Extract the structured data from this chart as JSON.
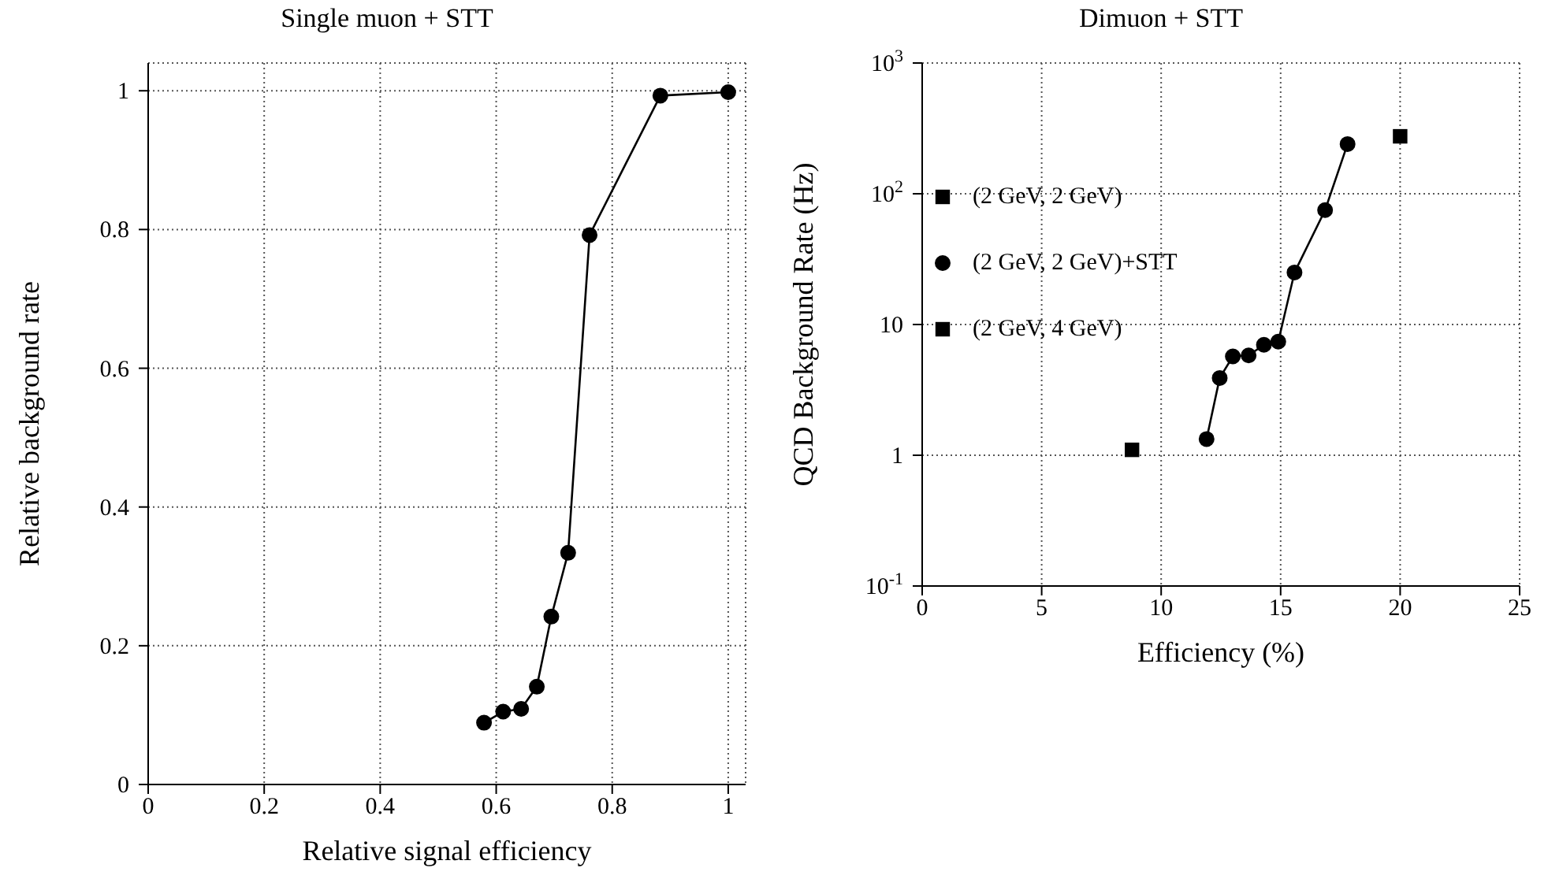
{
  "chart_data": [
    {
      "type": "line",
      "title": "Single muon + STT",
      "xlabel": "Relative signal efficiency",
      "ylabel": "Relative background rate",
      "x": [
        0.579,
        0.612,
        0.643,
        0.67,
        0.695,
        0.724,
        0.761,
        0.883,
        1.0
      ],
      "series": [
        {
          "color": "#000000",
          "values": [
            0.089,
            0.105,
            0.109,
            0.141,
            0.242,
            0.334,
            0.792,
            0.993,
            0.998
          ]
        }
      ],
      "xlim": [
        0,
        1.03
      ],
      "xticks": [
        0,
        0.2,
        0.4,
        0.6,
        0.8,
        1
      ],
      "ylim": [
        0,
        1.04
      ],
      "yticks": [
        0,
        0.2,
        0.4,
        0.6,
        0.8,
        1
      ],
      "grid": true,
      "marker": "circle",
      "legend": false
    },
    {
      "type": "scatter",
      "title": "Dimuon + STT",
      "xlabel": "Efficiency (%)",
      "ylabel": "QCD Background Rate (Hz)",
      "log": "y",
      "series": [
        {
          "name": "(2 GeV, 2 GeV)",
          "marker": "square",
          "color": "#000000",
          "x": [
            20.0
          ],
          "values": [
            275
          ]
        },
        {
          "name": "(2 GeV, 2 GeV)+STT",
          "type": "line",
          "marker": "circle",
          "color": "#000000",
          "x": [
            11.9,
            12.45,
            13.0,
            13.66,
            14.3,
            14.9,
            15.58,
            16.86,
            17.8
          ],
          "values": [
            1.33,
            3.9,
            5.7,
            5.8,
            7.0,
            7.4,
            25,
            75,
            240
          ]
        },
        {
          "name": "(2 GeV, 4 GeV)",
          "marker": "square",
          "color": "#000000",
          "x": [
            8.78
          ],
          "values": [
            1.1
          ]
        }
      ],
      "xlim": [
        0,
        25
      ],
      "xticks": [
        0,
        5,
        10,
        15,
        20,
        25
      ],
      "ylim": [
        0.1,
        1000
      ],
      "yticks": [
        {
          "value": 0.1,
          "label": "10$^{-1}$"
        },
        {
          "value": 1,
          "label": "1"
        },
        {
          "value": 10,
          "label": "10"
        },
        {
          "value": 100,
          "label": "10$^{2}$"
        },
        {
          "value": 1000,
          "label": "10$^{3}$"
        }
      ],
      "grid": true,
      "legend": "top left"
    }
  ]
}
